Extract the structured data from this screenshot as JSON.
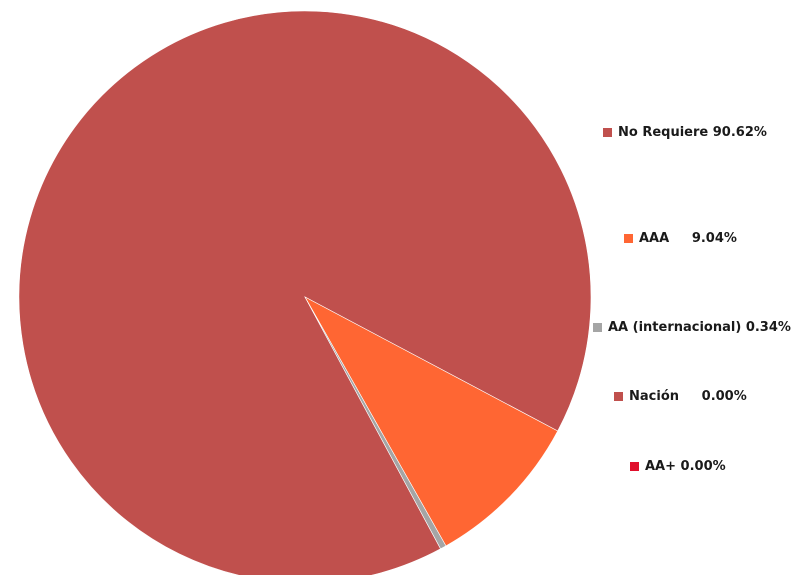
{
  "chart_data": {
    "type": "pie",
    "title": "",
    "slices": [
      {
        "label": "No Requiere",
        "value": 90.62,
        "value_label": "90.62%",
        "color": "#c0504d"
      },
      {
        "label": "AAA",
        "value": 9.04,
        "value_label": "9.04%",
        "color": "#ff6633"
      },
      {
        "label": "AA (internacional)",
        "value": 0.34,
        "value_label": "0.34%",
        "color": "#a5a5a5"
      },
      {
        "label": "Nación",
        "value": 0.0,
        "value_label": "0.00%",
        "color": "#c0504d"
      },
      {
        "label": "AA+",
        "value": 0.0,
        "value_label": "0.00%",
        "color": "#e0102c"
      }
    ],
    "legend_position": "right"
  }
}
